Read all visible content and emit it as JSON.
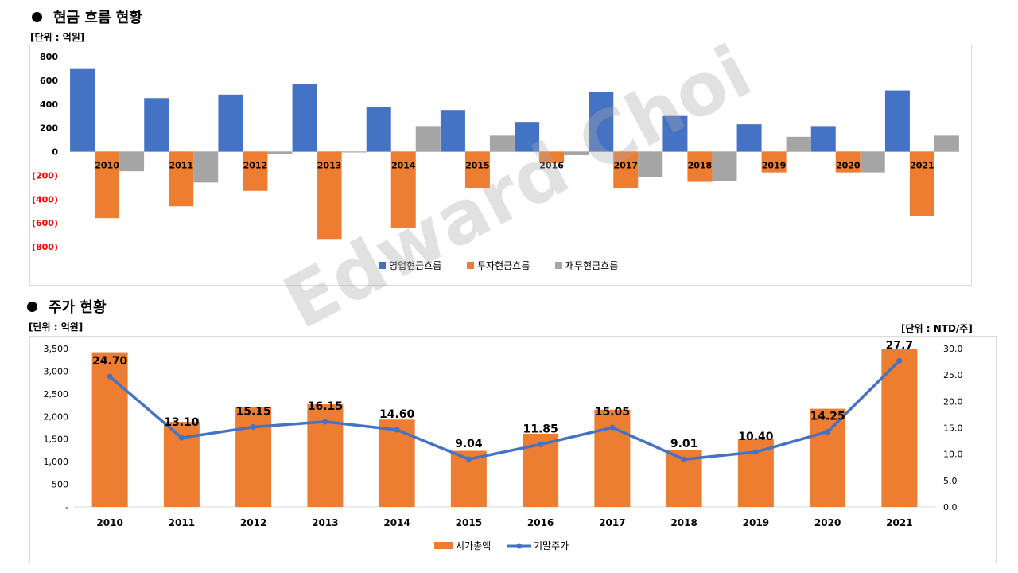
{
  "cashflow": {
    "section_title": "현금 흐름 현황",
    "unit_left": "[단위 : 억원]",
    "chart_data": {
      "type": "bar",
      "categories": [
        "2010",
        "2011",
        "2012",
        "2013",
        "2014",
        "2015",
        "2016",
        "2017",
        "2018",
        "2019",
        "2020",
        "2021"
      ],
      "series": [
        {
          "name": "영업현금흐름",
          "color": "#4472C4",
          "values": [
            695,
            450,
            480,
            570,
            375,
            350,
            250,
            505,
            300,
            230,
            215,
            515
          ]
        },
        {
          "name": "투자현금흐름",
          "color": "#ED7D31",
          "values": [
            -560,
            -460,
            -330,
            -735,
            -640,
            -305,
            -95,
            -305,
            -255,
            -175,
            -175,
            -545
          ]
        },
        {
          "name": "재무현금흐름",
          "color": "#A5A5A5",
          "values": [
            -165,
            -260,
            -20,
            -5,
            215,
            135,
            -30,
            -215,
            -245,
            125,
            -175,
            135
          ]
        }
      ],
      "ylim": [
        -800,
        800
      ],
      "yticks": [
        800,
        600,
        400,
        200,
        0,
        -200,
        -400,
        -600,
        -800
      ],
      "ytick_labels": [
        "800",
        "600",
        "400",
        "200",
        "0",
        "(200)",
        "(400)",
        "(600)",
        "(800)"
      ],
      "negative_label_color": "#FF0000",
      "legend_position": "bottom-center"
    }
  },
  "stock": {
    "section_title": "주가 현황",
    "unit_left": "[단위 : 억원]",
    "unit_right": "[단위 : NTD/주]",
    "chart_data": {
      "type": "bar+line",
      "categories": [
        "2010",
        "2011",
        "2012",
        "2013",
        "2014",
        "2015",
        "2016",
        "2017",
        "2018",
        "2019",
        "2020",
        "2021"
      ],
      "bar_series": {
        "name": "시가총액",
        "color": "#ED7D31",
        "values": [
          3420,
          1880,
          2210,
          2270,
          1930,
          1240,
          1620,
          2150,
          1250,
          1500,
          2170,
          3490
        ]
      },
      "line_series": {
        "name": "기말주가",
        "color": "#4472C4",
        "values": [
          24.7,
          13.1,
          15.15,
          16.15,
          14.6,
          9.04,
          11.85,
          15.05,
          9.01,
          10.4,
          14.25,
          27.7
        ]
      },
      "line_labels": [
        "24.70",
        "13.10",
        "15.15",
        "16.15",
        "14.60",
        "9.04",
        "11.85",
        "15.05",
        "9.01",
        "10.40",
        "14.25",
        "27.7"
      ],
      "y_left": {
        "ylim": [
          0,
          3500
        ],
        "ticks": [
          3500,
          3000,
          2500,
          2000,
          1500,
          1000,
          500,
          0
        ],
        "tick_labels": [
          "3,500",
          "3,000",
          "2,500",
          "2,000",
          "1,500",
          "1,000",
          "500",
          "-"
        ]
      },
      "y_right": {
        "ylim": [
          0,
          30
        ],
        "ticks": [
          30,
          25,
          20,
          15,
          10,
          5,
          0
        ],
        "tick_labels": [
          "30.0",
          "25.0",
          "20.0",
          "15.0",
          "10.0",
          "5.0",
          "0.0"
        ]
      },
      "legend_position": "bottom-center"
    }
  },
  "watermark": "Edward Choi"
}
